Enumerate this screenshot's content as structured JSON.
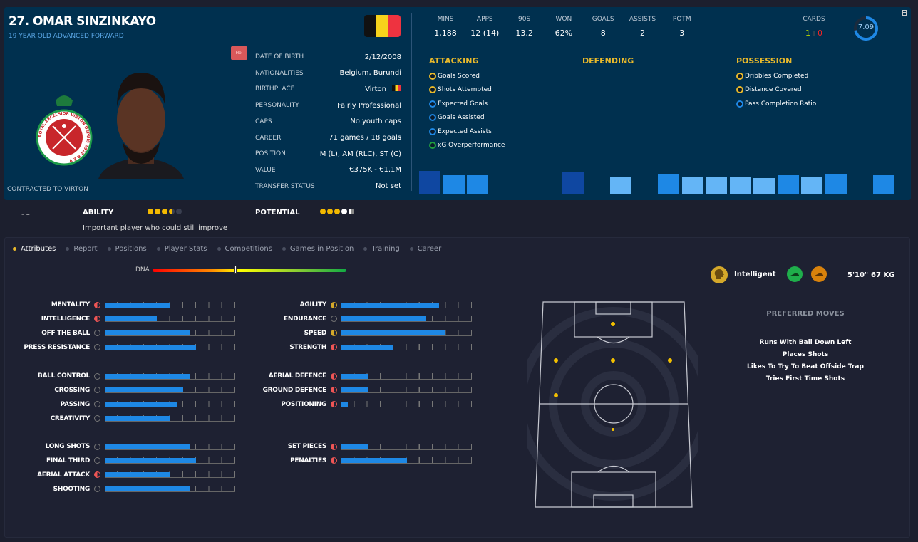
{
  "player": {
    "name": "27. OMAR SINZINKAYO",
    "subtitle": "19 YEAR OLD  ADVANCED FORWARD",
    "contract": "CONTRACTED TO VIRTON",
    "badge": "Hol",
    "club_crest_text": "ROYAL EXCELSIOR VIRTON DEPUIS 1922 R E V"
  },
  "info": [
    {
      "k": "DATE OF BIRTH",
      "v": "2/12/2008"
    },
    {
      "k": "NATIONALITIES",
      "v": "Belgium, Burundi"
    },
    {
      "k": "BIRTHPLACE",
      "v": "Virton"
    },
    {
      "k": "PERSONALITY",
      "v": "Fairly Professional"
    },
    {
      "k": "CAPS",
      "v": "No youth caps"
    },
    {
      "k": "CAREER",
      "v": "71 games /   18  goals"
    },
    {
      "k": "POSITION",
      "v": "M (L), AM (RLC), ST (C)"
    },
    {
      "k": "VALUE",
      "v": "€375K - €1.1M"
    },
    {
      "k": "TRANSFER STATUS",
      "v": "Not set"
    }
  ],
  "stats": [
    {
      "k": "MINS",
      "v": "1,188"
    },
    {
      "k": "APPS",
      "v": "12 (14)"
    },
    {
      "k": "90S",
      "v": "13.2"
    },
    {
      "k": "WON",
      "v": "62%"
    },
    {
      "k": "GOALS",
      "v": "8"
    },
    {
      "k": "ASSISTS",
      "v": "2"
    },
    {
      "k": "POTM",
      "v": "3"
    }
  ],
  "cards": {
    "label": "CARDS",
    "yellow": "1",
    "red": "0"
  },
  "rating": {
    "value": "7.09",
    "fraction": 0.72
  },
  "sections": {
    "attacking": {
      "title": "ATTACKING",
      "items": [
        {
          "t": "Goals Scored",
          "c": "#e9b92b"
        },
        {
          "t": "Shots Attempted",
          "c": "#e9b92b"
        },
        {
          "t": "Expected Goals",
          "c": "#1e88e5"
        },
        {
          "t": "Goals Assisted",
          "c": "#1e88e5"
        },
        {
          "t": "Expected Assists",
          "c": "#1e88e5"
        },
        {
          "t": "xG Overperformance",
          "c": "#1fa040"
        }
      ]
    },
    "defending": {
      "title": "DEFENDING"
    },
    "possession": {
      "title": "POSSESSION",
      "items": [
        {
          "t": "Dribbles Completed",
          "c": "#e9b92b"
        },
        {
          "t": "Distance Covered",
          "c": "#e9b92b"
        },
        {
          "t": "Pass Completion Ratio",
          "c": "#1e88e5"
        }
      ]
    }
  },
  "percentile_bars": [
    {
      "v": 100,
      "c": "#0f47a1"
    },
    {
      "v": 82,
      "c": "#1e88e5"
    },
    {
      "v": 82,
      "c": "#1e88e5"
    },
    null,
    null,
    null,
    {
      "v": 97,
      "c": "#0f47a1"
    },
    null,
    {
      "v": 75,
      "c": "#64b5f6"
    },
    null,
    {
      "v": 88,
      "c": "#1e88e5"
    },
    {
      "v": 75,
      "c": "#64b5f6"
    },
    {
      "v": 75,
      "c": "#64b5f6"
    },
    {
      "v": 75,
      "c": "#64b5f6"
    },
    {
      "v": 68,
      "c": "#64b5f6"
    },
    {
      "v": 82,
      "c": "#1e88e5"
    },
    {
      "v": 75,
      "c": "#64b5f6"
    },
    {
      "v": 85,
      "c": "#1e88e5"
    },
    null,
    {
      "v": 82,
      "c": "#1e88e5"
    }
  ],
  "ability": {
    "label": "ABILITY",
    "stars": 3.5,
    "desc": "Important player who could still improve"
  },
  "potential": {
    "label": "POTENTIAL",
    "stars": 4.5
  },
  "tabs": [
    "Attributes",
    "Report",
    "Positions",
    "Player Stats",
    "Competitions",
    "Games in Position",
    "Training",
    "Career"
  ],
  "dna": {
    "label": "DNA",
    "value": 0.43
  },
  "attributes_left": [
    [
      {
        "n": "MENTALITY",
        "v": 10,
        "c": "#e55"
      },
      {
        "n": "INTELLIGENCE",
        "v": 8,
        "c": "#e55"
      },
      {
        "n": "OFF THE BALL",
        "v": 13,
        "c": "#777"
      },
      {
        "n": "PRESS RESISTANCE",
        "v": 14,
        "c": "#777"
      }
    ],
    [
      {
        "n": "BALL CONTROL",
        "v": 13,
        "c": "#777"
      },
      {
        "n": "CROSSING",
        "v": 12,
        "c": "#777"
      },
      {
        "n": "PASSING",
        "v": 11,
        "c": "#777"
      },
      {
        "n": "CREATIVITY",
        "v": 10,
        "c": "#777"
      }
    ],
    [
      {
        "n": "LONG SHOTS",
        "v": 13,
        "c": "#777"
      },
      {
        "n": "FINAL THIRD",
        "v": 14,
        "c": "#777"
      },
      {
        "n": "AERIAL ATTACK",
        "v": 10,
        "c": "#e55"
      },
      {
        "n": "SHOOTING",
        "v": 13,
        "c": "#777"
      }
    ]
  ],
  "attributes_right": [
    [
      {
        "n": "AGILITY",
        "v": 15,
        "c": "#d4a82a"
      },
      {
        "n": "ENDURANCE",
        "v": 13,
        "c": "#777"
      },
      {
        "n": "SPEED",
        "v": 16,
        "c": "#d4a82a"
      },
      {
        "n": "STRENGTH",
        "v": 8,
        "c": "#e55"
      }
    ],
    [
      {
        "n": "AERIAL DEFENCE",
        "v": 4,
        "c": "#e55"
      },
      {
        "n": "GROUND DEFENCE",
        "v": 4,
        "c": "#e55"
      },
      {
        "n": "POSITIONING",
        "v": 1,
        "c": "#e55"
      }
    ],
    [
      {
        "n": "SET PIECES",
        "v": 4,
        "c": "#e55"
      },
      {
        "n": "PENALTIES",
        "v": 10,
        "c": "#e55"
      }
    ]
  ],
  "traits": {
    "personality_icon": "brain-head-icon",
    "personality": "Intelligent",
    "height": "5'10\"",
    "weight": "67 KG"
  },
  "preferred_moves": {
    "title": "PREFERRED MOVES",
    "items": [
      "Runs With Ball Down Left",
      "Places Shots",
      "Likes To Try To Beat Offside Trap",
      "Tries First Time Shots"
    ]
  }
}
